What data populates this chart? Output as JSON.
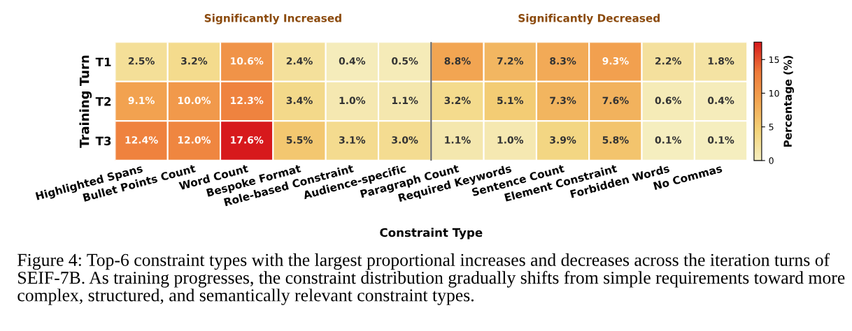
{
  "chart_data": {
    "type": "heatmap",
    "xlabel": "Constraint Type",
    "ylabel": "Training Turn",
    "clabel": "Percentage (%)",
    "categories": [
      "Highlighted Spans",
      "Bullet Points Count",
      "Word Count",
      "Bespoke Format",
      "Role-based Constraint",
      "Audience-specific",
      "Paragraph Count",
      "Required Keywords",
      "Sentence Count",
      "Element Constraint",
      "Forbidden Words",
      "No Commas"
    ],
    "y_categories": [
      "T1",
      "T2",
      "T3"
    ],
    "cells": [
      [
        2.5,
        3.2,
        10.6,
        2.4,
        0.4,
        0.5,
        8.8,
        7.2,
        8.3,
        9.3,
        2.2,
        1.8
      ],
      [
        9.1,
        10.0,
        12.3,
        3.4,
        1.0,
        1.1,
        3.2,
        5.1,
        7.3,
        7.6,
        0.6,
        0.4
      ],
      [
        12.4,
        12.0,
        17.6,
        5.5,
        3.1,
        3.0,
        1.1,
        1.0,
        3.9,
        5.8,
        0.1,
        0.1
      ]
    ],
    "cell_labels": [
      [
        "2.5%",
        "3.2%",
        "10.6%",
        "2.4%",
        "0.4%",
        "0.5%",
        "8.8%",
        "7.2%",
        "8.3%",
        "9.3%",
        "2.2%",
        "1.8%"
      ],
      [
        "9.1%",
        "10.0%",
        "12.3%",
        "3.4%",
        "1.0%",
        "1.1%",
        "3.2%",
        "5.1%",
        "7.3%",
        "7.6%",
        "0.6%",
        "0.4%"
      ],
      [
        "12.4%",
        "12.0%",
        "17.6%",
        "5.5%",
        "3.1%",
        "3.0%",
        "1.1%",
        "1.0%",
        "3.9%",
        "5.8%",
        "0.1%",
        "0.1%"
      ]
    ],
    "clim": [
      0,
      17.6
    ],
    "cticks": [
      0,
      5,
      10,
      15
    ],
    "annotations": [
      "Significantly Increased",
      "Significantly Decreased",
      "Figure 4: Top-6 constraint types with the largest proportional increases and decreases across the iteration turns of SEIF-7B. As training progresses, the constraint distribution gradually shifts from simple requirements toward more complex, structured, and semantically relevant constraint types."
    ]
  }
}
